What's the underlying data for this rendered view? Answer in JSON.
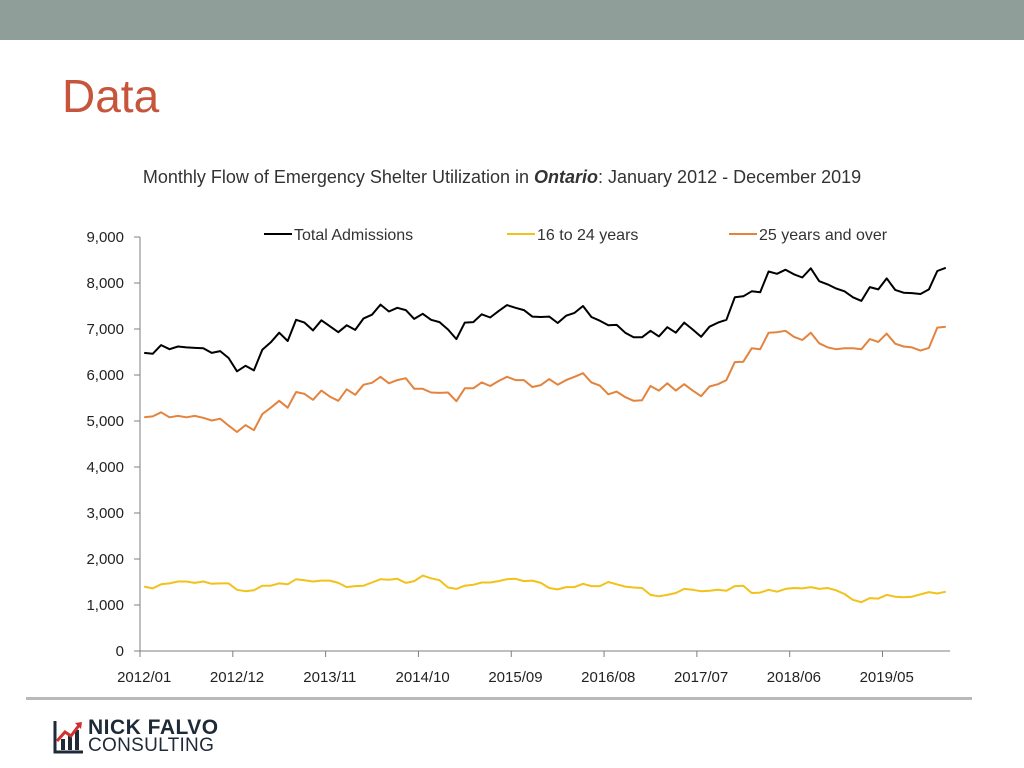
{
  "slide": {
    "title": "Data"
  },
  "logo": {
    "line1": "NICK FALVO",
    "line2": "CONSULTING"
  },
  "colors": {
    "header_band": "#8f9e98",
    "title": "#c6553c",
    "total": "#000000",
    "youth": "#f2c21b",
    "adult": "#e3843e",
    "logo_red": "#d0312d"
  },
  "chart_data": {
    "type": "line",
    "title_parts": [
      "Monthly Flow of Emergency Shelter Utilization in ",
      "Ontario",
      ": January 2012 - December 2019"
    ],
    "xlabel": "",
    "ylabel": "",
    "ylim": [
      0,
      9000
    ],
    "y_ticks": [
      "0",
      "1,000",
      "2,000",
      "3,000",
      "4,000",
      "5,000",
      "6,000",
      "7,000",
      "8,000",
      "9,000"
    ],
    "y_tick_values": [
      0,
      1000,
      2000,
      3000,
      4000,
      5000,
      6000,
      7000,
      8000,
      9000
    ],
    "x_tick_labels": [
      "2012/01",
      "2012/12",
      "2013/11",
      "2014/10",
      "2015/09",
      "2016/08",
      "2017/07",
      "2018/06",
      "2019/05"
    ],
    "x_tick_indices": [
      0,
      11,
      22,
      33,
      44,
      55,
      66,
      77,
      88
    ],
    "n_points": 96,
    "legend_position": "top",
    "series": [
      {
        "name": "Total Admissions",
        "color": "#000000",
        "values": [
          6480,
          6460,
          6650,
          6560,
          6620,
          6600,
          6590,
          6580,
          6480,
          6520,
          6370,
          6080,
          6200,
          6100,
          6550,
          6710,
          6920,
          6740,
          7200,
          7140,
          6970,
          7190,
          7060,
          6930,
          7080,
          6980,
          7230,
          7310,
          7530,
          7380,
          7460,
          7410,
          7220,
          7330,
          7200,
          7150,
          6990,
          6780,
          7140,
          7150,
          7320,
          7250,
          7390,
          7520,
          7460,
          7410,
          7270,
          7260,
          7270,
          7130,
          7290,
          7350,
          7500,
          7260,
          7180,
          7080,
          7090,
          6920,
          6820,
          6820,
          6960,
          6840,
          7040,
          6920,
          7140,
          6990,
          6830,
          7050,
          7140,
          7200,
          7690,
          7710,
          7820,
          7800,
          8250,
          8200,
          8290,
          8190,
          8120,
          8320,
          8040,
          7970,
          7880,
          7820,
          7690,
          7610,
          7910,
          7860,
          8100,
          7850,
          7790,
          7780,
          7760,
          7860,
          8260,
          8330
        ]
      },
      {
        "name": "16 to 24 years",
        "color": "#f2c21b",
        "values": [
          1400,
          1360,
          1450,
          1470,
          1510,
          1510,
          1480,
          1510,
          1460,
          1470,
          1470,
          1330,
          1300,
          1320,
          1420,
          1420,
          1470,
          1450,
          1560,
          1540,
          1510,
          1530,
          1530,
          1480,
          1390,
          1410,
          1420,
          1490,
          1560,
          1550,
          1570,
          1480,
          1520,
          1640,
          1580,
          1540,
          1380,
          1350,
          1420,
          1440,
          1490,
          1490,
          1520,
          1560,
          1570,
          1520,
          1530,
          1480,
          1370,
          1340,
          1390,
          1390,
          1460,
          1410,
          1410,
          1500,
          1450,
          1400,
          1380,
          1370,
          1220,
          1190,
          1220,
          1260,
          1350,
          1330,
          1300,
          1310,
          1330,
          1310,
          1410,
          1420,
          1260,
          1270,
          1330,
          1290,
          1350,
          1370,
          1360,
          1390,
          1350,
          1370,
          1320,
          1240,
          1110,
          1060,
          1150,
          1140,
          1220,
          1180,
          1170,
          1180,
          1230,
          1280,
          1250,
          1290
        ]
      },
      {
        "name": "25 years and over",
        "color": "#e3843e",
        "values": [
          5080,
          5100,
          5190,
          5080,
          5110,
          5080,
          5110,
          5070,
          5010,
          5050,
          4900,
          4760,
          4910,
          4800,
          5150,
          5290,
          5440,
          5290,
          5630,
          5590,
          5460,
          5660,
          5530,
          5440,
          5690,
          5570,
          5790,
          5830,
          5960,
          5820,
          5890,
          5930,
          5700,
          5700,
          5620,
          5610,
          5620,
          5430,
          5710,
          5710,
          5840,
          5760,
          5870,
          5960,
          5890,
          5890,
          5740,
          5780,
          5910,
          5790,
          5890,
          5960,
          6040,
          5840,
          5770,
          5580,
          5640,
          5520,
          5440,
          5450,
          5760,
          5660,
          5820,
          5660,
          5800,
          5660,
          5540,
          5750,
          5800,
          5890,
          6280,
          6290,
          6580,
          6560,
          6920,
          6930,
          6960,
          6830,
          6760,
          6920,
          6690,
          6600,
          6560,
          6580,
          6580,
          6560,
          6780,
          6720,
          6900,
          6680,
          6620,
          6600,
          6530,
          6590,
          7030,
          7050
        ]
      }
    ]
  }
}
